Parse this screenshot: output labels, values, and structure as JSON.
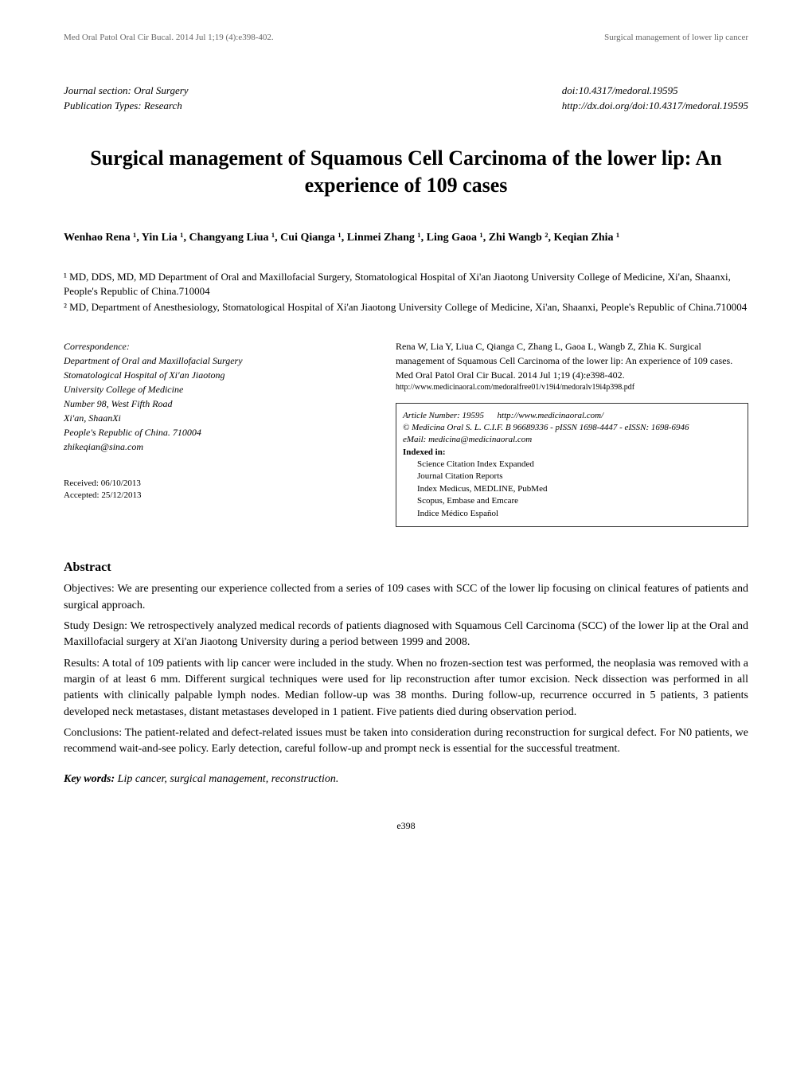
{
  "runningHeader": {
    "left": "Med Oral Patol Oral Cir Bucal. 2014 Jul 1;19 (4):e398-402.",
    "right": "Surgical management of lower lip cancer"
  },
  "meta": {
    "sectionLabel": "Journal section: Oral Surgery",
    "pubTypeLabel": "Publication Types: Research",
    "doi": "doi:10.4317/medoral.19595",
    "doiUrl": "http://dx.doi.org/doi:10.4317/medoral.19595"
  },
  "title": "Surgical management of Squamous Cell Carcinoma of the lower lip: An experience of 109 cases",
  "authors": "Wenhao Rena ¹, Yin Lia ¹, Changyang Liua ¹, Cui Qianga ¹, Linmei Zhang ¹, Ling Gaoa ¹, Zhi Wangb ², Keqian Zhia ¹",
  "affiliations": {
    "aff1": "¹ MD, DDS, MD, MD Department of Oral and Maxillofacial Surgery, Stomatological Hospital of Xi'an Jiaotong University College of Medicine, Xi'an, Shaanxi, People's Republic of China.710004",
    "aff2": "² MD, Department of Anesthesiology, Stomatological Hospital of Xi'an Jiaotong University College of Medicine, Xi'an, Shaanxi, People's Republic of China.710004"
  },
  "correspondence": {
    "heading": "Correspondence:",
    "lines": [
      "Department of Oral and Maxillofacial Surgery",
      "Stomatological Hospital of Xi'an Jiaotong",
      "University College of Medicine",
      "Number 98, West Fifth Road",
      "Xi'an, ShaanXi",
      "People's Republic of China. 710004",
      "zhikeqian@sina.com"
    ]
  },
  "dates": {
    "received": "Received: 06/10/2013",
    "accepted": "Accepted: 25/12/2013"
  },
  "citation": {
    "text": "Rena W, Lia Y, Liua C, Qianga C, Zhang L, Gaoa L, Wangb Z, Zhia K. Surgical management of Squamous Cell Carcinoma of the lower lip: An experience of 109 cases. Med Oral Patol Oral Cir Bucal. 2014 Jul 1;19 (4):e398-402.",
    "url": "http://www.medicinaoral.com/medoralfree01/v19i4/medoralv19i4p398.pdf"
  },
  "box": {
    "articleNumber": "Article Number: 19595",
    "siteUrl": "http://www.medicinaoral.com/",
    "copyright": "© Medicina Oral S. L. C.I.F. B 96689336 - pISSN 1698-4447 - eISSN: 1698-6946",
    "email": "eMail:  medicina@medicinaoral.com",
    "indexedLabel": "Indexed in:",
    "indexed": [
      "Science Citation Index Expanded",
      "Journal Citation Reports",
      "Index Medicus, MEDLINE, PubMed",
      "Scopus, Embase and Emcare",
      "Indice Médico Español"
    ]
  },
  "abstract": {
    "heading": "Abstract",
    "paragraphs": [
      "Objectives: We are presenting our experience collected from a series of 109 cases with SCC of the lower lip focusing on clinical features of patients and surgical approach.",
      "Study Design: We retrospectively analyzed medical records of patients diagnosed with Squamous Cell Carcinoma (SCC) of the lower lip at the Oral and Maxillofacial surgery at Xi'an Jiaotong University during a period between 1999 and 2008.",
      "Results: A total of 109 patients with lip cancer were included in the study. When no frozen-section test was performed, the neoplasia was removed with a margin of at least 6 mm. Different surgical techniques were used for lip reconstruction after tumor excision. Neck dissection was performed in all patients with clinically palpable lymph nodes. Median follow-up was 38 months. During follow-up, recurrence occurred in 5 patients, 3 patients developed neck metastases, distant metastases developed in 1 patient. Five patients died during observation period.",
      "Conclusions: The patient-related and defect-related issues must be taken into consideration during reconstruction for surgical defect. For N0 patients, we recommend wait-and-see policy. Early detection, careful follow-up and prompt neck is essential for the successful treatment."
    ]
  },
  "keywords": {
    "label": "Key words:",
    "text": " Lip cancer, surgical management, reconstruction."
  },
  "pageNumber": "e398"
}
